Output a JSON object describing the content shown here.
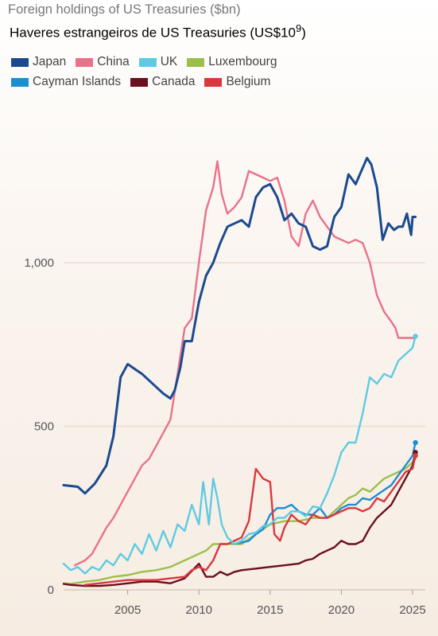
{
  "chart_data": {
    "type": "line",
    "title": "Foreign holdings of US Treasuries ($bn)",
    "subtitle_main": "Haveres estrangeiros de US Treasuries (US$10",
    "subtitle_sup": "9",
    "subtitle_end": ")",
    "xlim": [
      2000.5,
      2025.5
    ],
    "ylim": [
      0,
      1400
    ],
    "x_ticks": [
      2005,
      2010,
      2015,
      2020,
      2025
    ],
    "x_tick_labels": [
      "2005",
      "2010",
      "2015",
      "2020",
      "2025"
    ],
    "y_ticks": [
      0,
      500,
      1000
    ],
    "y_tick_labels": [
      "0",
      "500",
      "1,000"
    ],
    "grid": true,
    "legend_position": "top-left",
    "series": [
      {
        "name": "Japan",
        "color": "#1b4a8f",
        "points": [
          [
            2000.5,
            320
          ],
          [
            2001.5,
            315
          ],
          [
            2002,
            295
          ],
          [
            2002.7,
            325
          ],
          [
            2003.5,
            380
          ],
          [
            2004,
            470
          ],
          [
            2004.5,
            650
          ],
          [
            2005,
            690
          ],
          [
            2005.5,
            675
          ],
          [
            2006,
            660
          ],
          [
            2007,
            620
          ],
          [
            2007.5,
            600
          ],
          [
            2008,
            585
          ],
          [
            2008.3,
            610
          ],
          [
            2008.7,
            680
          ],
          [
            2009,
            760
          ],
          [
            2009.5,
            760
          ],
          [
            2010,
            880
          ],
          [
            2010.5,
            960
          ],
          [
            2011,
            1000
          ],
          [
            2011.5,
            1060
          ],
          [
            2012,
            1110
          ],
          [
            2012.5,
            1120
          ],
          [
            2013,
            1130
          ],
          [
            2013.5,
            1110
          ],
          [
            2014,
            1200
          ],
          [
            2014.5,
            1230
          ],
          [
            2015,
            1240
          ],
          [
            2015.5,
            1200
          ],
          [
            2016,
            1130
          ],
          [
            2016.5,
            1150
          ],
          [
            2017,
            1120
          ],
          [
            2017.5,
            1110
          ],
          [
            2018,
            1050
          ],
          [
            2018.5,
            1040
          ],
          [
            2019,
            1050
          ],
          [
            2019.5,
            1140
          ],
          [
            2020,
            1170
          ],
          [
            2020.5,
            1270
          ],
          [
            2021,
            1240
          ],
          [
            2021.5,
            1290
          ],
          [
            2021.8,
            1320
          ],
          [
            2022.1,
            1300
          ],
          [
            2022.5,
            1230
          ],
          [
            2022.9,
            1070
          ],
          [
            2023.3,
            1120
          ],
          [
            2023.7,
            1100
          ],
          [
            2024,
            1110
          ],
          [
            2024.3,
            1110
          ],
          [
            2024.6,
            1150
          ],
          [
            2024.9,
            1085
          ],
          [
            2025,
            1140
          ],
          [
            2025.2,
            1140
          ]
        ]
      },
      {
        "name": "China",
        "color": "#e8728a",
        "points": [
          [
            2001.3,
            75
          ],
          [
            2002,
            90
          ],
          [
            2002.5,
            110
          ],
          [
            2003,
            150
          ],
          [
            2003.5,
            190
          ],
          [
            2004,
            220
          ],
          [
            2004.5,
            260
          ],
          [
            2005,
            300
          ],
          [
            2005.5,
            340
          ],
          [
            2006,
            380
          ],
          [
            2006.5,
            400
          ],
          [
            2007,
            440
          ],
          [
            2007.5,
            480
          ],
          [
            2008,
            520
          ],
          [
            2008.5,
            660
          ],
          [
            2009,
            800
          ],
          [
            2009.5,
            830
          ],
          [
            2010,
            1000
          ],
          [
            2010.5,
            1160
          ],
          [
            2011,
            1230
          ],
          [
            2011.3,
            1310
          ],
          [
            2011.6,
            1210
          ],
          [
            2012,
            1150
          ],
          [
            2012.5,
            1170
          ],
          [
            2013,
            1200
          ],
          [
            2013.5,
            1280
          ],
          [
            2014,
            1270
          ],
          [
            2014.5,
            1260
          ],
          [
            2015,
            1250
          ],
          [
            2015.5,
            1260
          ],
          [
            2016,
            1190
          ],
          [
            2016.5,
            1080
          ],
          [
            2017,
            1050
          ],
          [
            2017.5,
            1150
          ],
          [
            2018,
            1190
          ],
          [
            2018.5,
            1140
          ],
          [
            2019,
            1110
          ],
          [
            2019.5,
            1080
          ],
          [
            2020,
            1070
          ],
          [
            2020.5,
            1060
          ],
          [
            2021,
            1070
          ],
          [
            2021.5,
            1060
          ],
          [
            2022,
            1000
          ],
          [
            2022.5,
            900
          ],
          [
            2023,
            850
          ],
          [
            2023.5,
            820
          ],
          [
            2023.8,
            800
          ],
          [
            2024,
            770
          ],
          [
            2024.5,
            770
          ],
          [
            2025.2,
            770
          ]
        ]
      },
      {
        "name": "UK",
        "color": "#5ecbe2",
        "points": [
          [
            2000.5,
            80
          ],
          [
            2001,
            60
          ],
          [
            2001.5,
            70
          ],
          [
            2002,
            50
          ],
          [
            2002.5,
            70
          ],
          [
            2003,
            60
          ],
          [
            2003.5,
            90
          ],
          [
            2004,
            75
          ],
          [
            2004.5,
            110
          ],
          [
            2005,
            90
          ],
          [
            2005.5,
            140
          ],
          [
            2006,
            110
          ],
          [
            2006.5,
            170
          ],
          [
            2007,
            120
          ],
          [
            2007.5,
            180
          ],
          [
            2008,
            130
          ],
          [
            2008.5,
            200
          ],
          [
            2009,
            180
          ],
          [
            2009.5,
            260
          ],
          [
            2010,
            200
          ],
          [
            2010.3,
            330
          ],
          [
            2010.7,
            200
          ],
          [
            2011,
            340
          ],
          [
            2011.3,
            280
          ],
          [
            2011.6,
            200
          ],
          [
            2012,
            160
          ],
          [
            2012.5,
            140
          ],
          [
            2013,
            150
          ],
          [
            2013.5,
            170
          ],
          [
            2014,
            175
          ],
          [
            2014.5,
            195
          ],
          [
            2015,
            200
          ],
          [
            2015.5,
            220
          ],
          [
            2016,
            220
          ],
          [
            2016.5,
            240
          ],
          [
            2017,
            240
          ],
          [
            2017.5,
            225
          ],
          [
            2018,
            255
          ],
          [
            2018.5,
            250
          ],
          [
            2019,
            295
          ],
          [
            2019.5,
            350
          ],
          [
            2020,
            420
          ],
          [
            2020.5,
            450
          ],
          [
            2021,
            450
          ],
          [
            2021.5,
            540
          ],
          [
            2022,
            650
          ],
          [
            2022.5,
            630
          ],
          [
            2023,
            660
          ],
          [
            2023.5,
            650
          ],
          [
            2024,
            700
          ],
          [
            2024.5,
            720
          ],
          [
            2025,
            740
          ],
          [
            2025.2,
            775
          ]
        ]
      },
      {
        "name": "Luxembourg",
        "color": "#9cbf4c",
        "points": [
          [
            2000.5,
            20
          ],
          [
            2001,
            18
          ],
          [
            2002,
            25
          ],
          [
            2003,
            30
          ],
          [
            2004,
            40
          ],
          [
            2005,
            45
          ],
          [
            2006,
            55
          ],
          [
            2007,
            60
          ],
          [
            2008,
            70
          ],
          [
            2009,
            90
          ],
          [
            2010,
            110
          ],
          [
            2010.5,
            120
          ],
          [
            2011,
            140
          ],
          [
            2012,
            140
          ],
          [
            2013,
            140
          ],
          [
            2014,
            170
          ],
          [
            2015,
            200
          ],
          [
            2016,
            210
          ],
          [
            2017,
            210
          ],
          [
            2018,
            220
          ],
          [
            2019,
            220
          ],
          [
            2020,
            260
          ],
          [
            2020.5,
            280
          ],
          [
            2021,
            290
          ],
          [
            2021.5,
            310
          ],
          [
            2022,
            300
          ],
          [
            2022.5,
            320
          ],
          [
            2023,
            340
          ],
          [
            2023.5,
            350
          ],
          [
            2024,
            360
          ],
          [
            2024.5,
            370
          ],
          [
            2025,
            390
          ],
          [
            2025.2,
            400
          ]
        ]
      },
      {
        "name": "Cayman Islands",
        "color": "#1b8fd0",
        "points": [
          [
            2012.5,
            140
          ],
          [
            2013,
            145
          ],
          [
            2013.5,
            150
          ],
          [
            2014,
            170
          ],
          [
            2014.5,
            185
          ],
          [
            2015,
            230
          ],
          [
            2015.5,
            250
          ],
          [
            2016,
            250
          ],
          [
            2016.5,
            260
          ],
          [
            2017,
            240
          ],
          [
            2017.5,
            230
          ],
          [
            2018,
            230
          ],
          [
            2018.5,
            250
          ],
          [
            2019,
            220
          ],
          [
            2019.5,
            230
          ],
          [
            2020,
            250
          ],
          [
            2020.5,
            260
          ],
          [
            2021,
            260
          ],
          [
            2021.5,
            280
          ],
          [
            2022,
            275
          ],
          [
            2022.5,
            290
          ],
          [
            2023,
            305
          ],
          [
            2023.5,
            320
          ],
          [
            2024,
            350
          ],
          [
            2024.5,
            380
          ],
          [
            2025,
            410
          ],
          [
            2025.2,
            450
          ]
        ]
      },
      {
        "name": "Canada",
        "color": "#6b0f1e",
        "points": [
          [
            2000.5,
            18
          ],
          [
            2001,
            15
          ],
          [
            2002,
            12
          ],
          [
            2003,
            12
          ],
          [
            2004,
            15
          ],
          [
            2005,
            20
          ],
          [
            2006,
            25
          ],
          [
            2007,
            25
          ],
          [
            2008,
            20
          ],
          [
            2009,
            35
          ],
          [
            2010,
            80
          ],
          [
            2010.5,
            40
          ],
          [
            2011,
            40
          ],
          [
            2011.5,
            55
          ],
          [
            2012,
            45
          ],
          [
            2012.5,
            55
          ],
          [
            2013,
            60
          ],
          [
            2014,
            65
          ],
          [
            2015,
            70
          ],
          [
            2016,
            75
          ],
          [
            2017,
            80
          ],
          [
            2017.5,
            90
          ],
          [
            2018,
            95
          ],
          [
            2018.5,
            110
          ],
          [
            2019,
            120
          ],
          [
            2019.5,
            130
          ],
          [
            2020,
            150
          ],
          [
            2020.5,
            140
          ],
          [
            2021,
            140
          ],
          [
            2021.5,
            150
          ],
          [
            2022,
            190
          ],
          [
            2022.5,
            220
          ],
          [
            2023,
            240
          ],
          [
            2023.5,
            260
          ],
          [
            2024,
            300
          ],
          [
            2024.5,
            340
          ],
          [
            2025,
            380
          ],
          [
            2025.2,
            420
          ]
        ]
      },
      {
        "name": "Belgium",
        "color": "#d9383e",
        "points": [
          [
            2002,
            15
          ],
          [
            2003,
            20
          ],
          [
            2004,
            25
          ],
          [
            2005,
            30
          ],
          [
            2006,
            30
          ],
          [
            2007,
            30
          ],
          [
            2008,
            35
          ],
          [
            2009,
            40
          ],
          [
            2009.5,
            60
          ],
          [
            2010,
            70
          ],
          [
            2010.5,
            60
          ],
          [
            2011,
            90
          ],
          [
            2011.5,
            140
          ],
          [
            2012,
            140
          ],
          [
            2012.5,
            150
          ],
          [
            2013,
            160
          ],
          [
            2013.5,
            210
          ],
          [
            2014,
            370
          ],
          [
            2014.5,
            340
          ],
          [
            2015,
            330
          ],
          [
            2015.3,
            170
          ],
          [
            2015.7,
            150
          ],
          [
            2016,
            190
          ],
          [
            2016.5,
            230
          ],
          [
            2017,
            210
          ],
          [
            2017.5,
            200
          ],
          [
            2018,
            230
          ],
          [
            2018.5,
            220
          ],
          [
            2019,
            220
          ],
          [
            2019.5,
            230
          ],
          [
            2020,
            240
          ],
          [
            2020.5,
            250
          ],
          [
            2021,
            250
          ],
          [
            2021.5,
            240
          ],
          [
            2022,
            250
          ],
          [
            2022.5,
            280
          ],
          [
            2023,
            270
          ],
          [
            2023.5,
            300
          ],
          [
            2024,
            330
          ],
          [
            2024.5,
            360
          ],
          [
            2025,
            370
          ],
          [
            2025.2,
            410
          ]
        ]
      }
    ]
  }
}
